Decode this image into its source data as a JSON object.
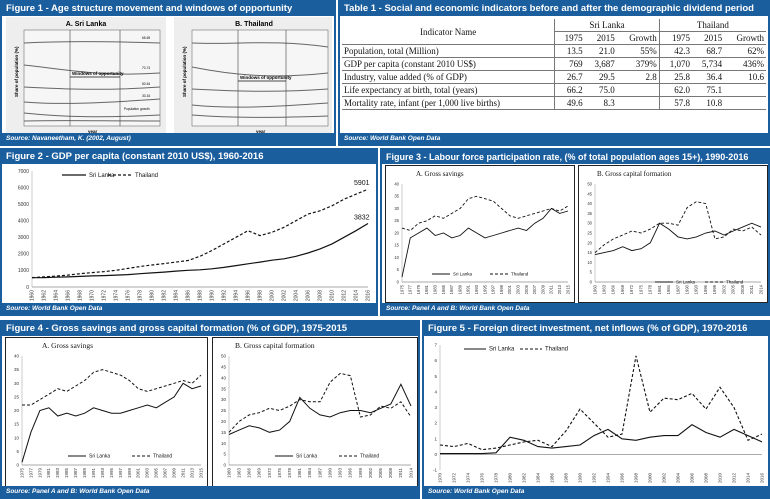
{
  "fig1": {
    "title": "Figure 1 - Age structure movement and windows of opportunity",
    "source": "Source: Navaneetham, K. (2002, August)",
    "panelA": "A. Sri Lanka",
    "panelB": "B. Thailand",
    "ylabel": "Share of population (%)",
    "xlabel": "year",
    "window_label": "Windows of opportunity",
    "age_labels": [
      "65-69",
      "70-74",
      "50-54",
      "30-34"
    ],
    "growth_label": "Population growth"
  },
  "table1": {
    "title": "Table 1 - Social and economic indicators before and after the demographic dividend period",
    "source": "Source: World Bank Open Data",
    "col_indicator": "Indicator Name",
    "country1": "Sri Lanka",
    "country2": "Thailand",
    "subcols": [
      "1975",
      "2015",
      "Growth",
      "1975",
      "2015",
      "Growth"
    ],
    "rows": [
      {
        "name": "Population, total (Million)",
        "vals": [
          "13.5",
          "21.0",
          "55%",
          "42.3",
          "68.7",
          "62%"
        ]
      },
      {
        "name": "GDP per capita (constant 2010 US$)",
        "vals": [
          "769",
          "3,687",
          "379%",
          "1,070",
          "5,734",
          "436%"
        ]
      },
      {
        "name": "Industry, value added (% of GDP)",
        "vals": [
          "26.7",
          "29.5",
          "2.8",
          "25.8",
          "36.4",
          "10.6"
        ]
      },
      {
        "name": "Life expectancy at birth, total (years)",
        "vals": [
          "66.2",
          "75.0",
          "",
          "62.0",
          "75.1",
          ""
        ]
      },
      {
        "name": "Mortality rate, infant (per 1,000 live births)",
        "vals": [
          "49.6",
          "8.3",
          "",
          "57.8",
          "10.8",
          ""
        ]
      }
    ]
  },
  "fig2": {
    "title": "Figure 2 - GDP per capita (constant 2010 US$), 1960-2016",
    "source": "Source: World Bank Open Data"
  },
  "fig3": {
    "title": "Figure 3 - Labour force participation rate, (% of total population ages 15+), 1990-2016",
    "source": "Source: Panel A and B: World Bank Open Data",
    "panelA": "A. Gross savings",
    "panelB": "B. Gross capital formation"
  },
  "fig4": {
    "title": "Figure 4 - Gross savings and gross capital formation (% of GDP), 1975-2015",
    "source": "Source: Panel A and B: World Bank Open Data",
    "panelA": "A. Gross savings",
    "panelB": "B. Gross capital formation"
  },
  "fig5": {
    "title": "Figure 5 - Foreign direct investment, net inflows (% of GDP), 1970-2016",
    "source": "Source: World Bank Open Data"
  },
  "chart_data": [
    {
      "id": "fig2",
      "type": "line",
      "ylim": [
        0,
        7000
      ],
      "yticks": [
        0,
        1000,
        2000,
        3000,
        4000,
        5000,
        6000,
        7000
      ],
      "x": [
        1960,
        1962,
        1964,
        1966,
        1968,
        1970,
        1972,
        1974,
        1976,
        1978,
        1980,
        1982,
        1984,
        1986,
        1988,
        1990,
        1992,
        1994,
        1996,
        1998,
        2000,
        2002,
        2004,
        2006,
        2008,
        2010,
        2012,
        2014,
        2016
      ],
      "series": [
        {
          "name": "Sri Lanka",
          "dash": false,
          "values": [
            560,
            570,
            590,
            610,
            640,
            670,
            690,
            720,
            750,
            800,
            850,
            900,
            960,
            1010,
            1040,
            1100,
            1180,
            1290,
            1400,
            1500,
            1620,
            1700,
            1850,
            2050,
            2300,
            2600,
            3000,
            3400,
            3832
          ]
        },
        {
          "name": "Thailand",
          "dash": true,
          "values": [
            570,
            610,
            660,
            720,
            800,
            870,
            930,
            1010,
            1120,
            1240,
            1330,
            1410,
            1500,
            1600,
            1850,
            2200,
            2600,
            3000,
            3400,
            3100,
            3300,
            3600,
            4000,
            4400,
            4600,
            4900,
            5300,
            5600,
            5901
          ]
        }
      ],
      "annotations": [
        {
          "text": "5901",
          "x": 2016,
          "y": 5901
        },
        {
          "text": "3832",
          "x": 2016,
          "y": 3832
        }
      ]
    },
    {
      "id": "fig3a",
      "type": "line",
      "ylim": [
        0,
        40
      ],
      "yticks": [
        0,
        5,
        10,
        15,
        20,
        25,
        30,
        35,
        40
      ],
      "categories": [
        "1975",
        "1977",
        "1979",
        "1981",
        "1983",
        "1985",
        "1987",
        "1989",
        "1991",
        "1993",
        "1995",
        "1997",
        "1999",
        "2001",
        "2003",
        "2005",
        "2007",
        "2009",
        "2011",
        "2013",
        "2015"
      ],
      "series": [
        {
          "name": "Sri Lanka",
          "dash": false,
          "values": [
            2,
            18,
            20,
            22,
            19,
            20,
            18,
            19,
            22,
            20,
            18,
            19,
            20,
            21,
            22,
            21,
            24,
            26,
            30,
            28,
            29
          ]
        },
        {
          "name": "Thailand",
          "dash": true,
          "values": [
            22,
            21,
            24,
            25,
            27,
            26,
            28,
            30,
            34,
            35,
            34,
            33,
            30,
            27,
            26,
            27,
            28,
            29,
            30,
            29,
            31
          ]
        }
      ]
    },
    {
      "id": "fig3b",
      "type": "line",
      "ylim": [
        0,
        50
      ],
      "yticks": [
        0,
        5,
        10,
        15,
        20,
        25,
        30,
        35,
        40,
        45,
        50
      ],
      "categories": [
        "1960",
        "1963",
        "1966",
        "1969",
        "1972",
        "1975",
        "1978",
        "1981",
        "1984",
        "1987",
        "1990",
        "1993",
        "1996",
        "1999",
        "2002",
        "2005",
        "2008",
        "2011",
        "2014"
      ],
      "series": [
        {
          "name": "Sri Lanka",
          "dash": false,
          "values": [
            14,
            15,
            16,
            18,
            16,
            17,
            20,
            30,
            27,
            23,
            22,
            23,
            25,
            26,
            24,
            26,
            28,
            30,
            28
          ]
        },
        {
          "name": "Thailand",
          "dash": true,
          "values": [
            15,
            19,
            22,
            24,
            26,
            25,
            27,
            30,
            30,
            29,
            38,
            41,
            40,
            22,
            23,
            27,
            26,
            28,
            24
          ]
        }
      ]
    },
    {
      "id": "fig4a",
      "type": "line",
      "ylim": [
        0,
        40
      ],
      "yticks": [
        0,
        5,
        10,
        15,
        20,
        25,
        30,
        35,
        40
      ],
      "categories": [
        "1975",
        "1977",
        "1979",
        "1981",
        "1983",
        "1985",
        "1987",
        "1989",
        "1991",
        "1993",
        "1995",
        "1997",
        "1999",
        "2001",
        "2003",
        "2005",
        "2007",
        "2009",
        "2011",
        "2013",
        "2015"
      ],
      "series": [
        {
          "name": "Sri Lanka",
          "dash": false,
          "values": [
            1,
            12,
            20,
            21,
            18,
            19,
            18,
            19,
            21,
            20,
            19,
            19,
            20,
            21,
            22,
            21,
            23,
            25,
            30,
            28,
            29
          ]
        },
        {
          "name": "Thailand",
          "dash": true,
          "values": [
            22,
            22,
            24,
            26,
            28,
            27,
            29,
            31,
            34,
            35,
            34,
            33,
            31,
            28,
            27,
            28,
            29,
            30,
            31,
            30,
            33
          ]
        }
      ]
    },
    {
      "id": "fig4b",
      "type": "line",
      "ylim": [
        0,
        50
      ],
      "yticks": [
        0,
        5,
        10,
        15,
        20,
        25,
        30,
        35,
        40,
        45,
        50
      ],
      "categories": [
        "1960",
        "1963",
        "1966",
        "1969",
        "1972",
        "1975",
        "1978",
        "1981",
        "1984",
        "1987",
        "1990",
        "1993",
        "1996",
        "1999",
        "2002",
        "2005",
        "2008",
        "2011",
        "2014"
      ],
      "series": [
        {
          "name": "Sri Lanka",
          "dash": false,
          "values": [
            14,
            16,
            18,
            17,
            15,
            16,
            20,
            31,
            26,
            23,
            22,
            24,
            25,
            25,
            24,
            26,
            28,
            37,
            27
          ]
        },
        {
          "name": "Thailand",
          "dash": true,
          "values": [
            15,
            20,
            23,
            24,
            26,
            25,
            27,
            30,
            29,
            29,
            38,
            42,
            41,
            22,
            23,
            27,
            26,
            29,
            22
          ]
        }
      ]
    },
    {
      "id": "fig5",
      "type": "line",
      "ylim": [
        -1,
        7
      ],
      "yticks": [
        -1,
        0,
        1,
        2,
        3,
        4,
        5,
        6,
        7
      ],
      "x": [
        1970,
        1972,
        1974,
        1976,
        1978,
        1980,
        1982,
        1984,
        1986,
        1988,
        1990,
        1992,
        1994,
        1996,
        1998,
        2000,
        2002,
        2004,
        2006,
        2008,
        2010,
        2012,
        2014,
        2016
      ],
      "series": [
        {
          "name": "Sri Lanka",
          "dash": false,
          "values": [
            0.05,
            0.05,
            0.05,
            0.05,
            0.1,
            1.1,
            0.9,
            0.5,
            0.4,
            0.5,
            0.6,
            1.2,
            1.6,
            1.0,
            0.9,
            1.1,
            1.2,
            1.2,
            1.9,
            1.4,
            1.1,
            1.6,
            1.2,
            0.8
          ]
        },
        {
          "name": "Thailand",
          "dash": true,
          "values": [
            0.6,
            0.5,
            0.7,
            0.3,
            0.4,
            0.6,
            0.8,
            0.9,
            0.5,
            1.5,
            2.9,
            2.0,
            1.1,
            1.3,
            6.3,
            2.7,
            3.6,
            3.5,
            3.9,
            2.9,
            4.3,
            3.0,
            0.9,
            1.3
          ]
        }
      ]
    }
  ]
}
